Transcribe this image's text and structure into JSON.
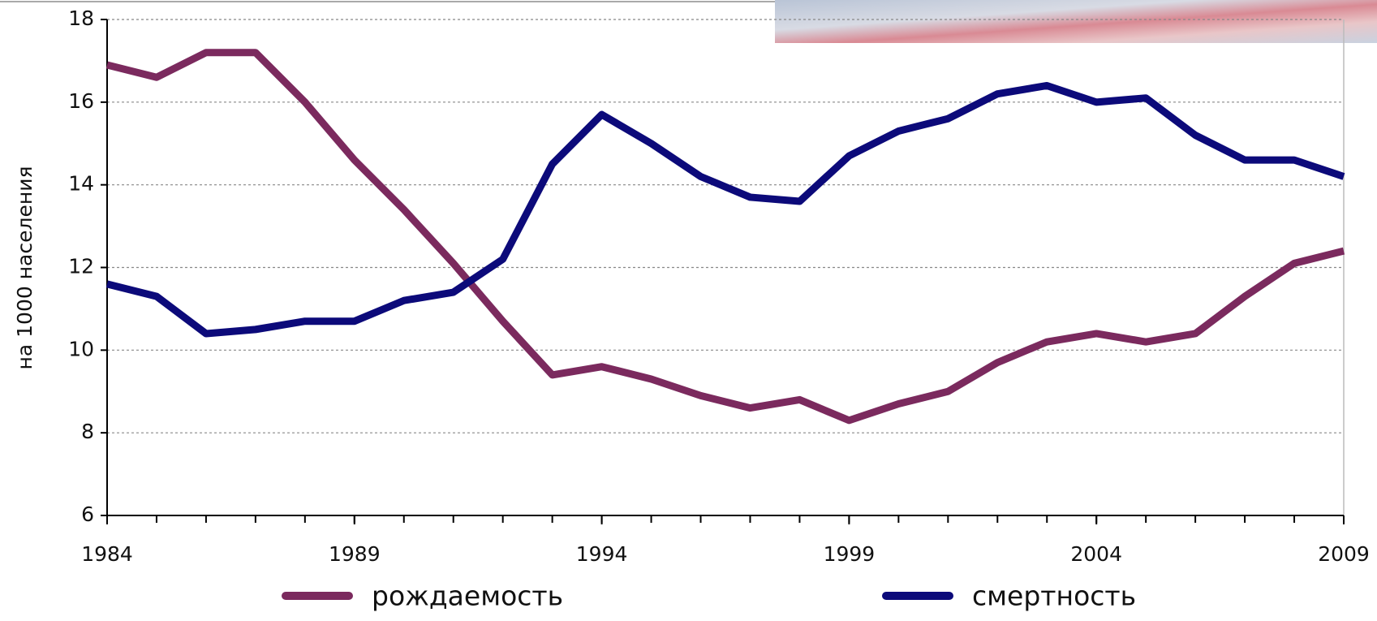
{
  "chart_data": {
    "type": "line",
    "y_label": "на 1000 населения",
    "x": [
      1984,
      1985,
      1986,
      1987,
      1988,
      1989,
      1990,
      1991,
      1992,
      1993,
      1994,
      1995,
      1996,
      1997,
      1998,
      1999,
      2000,
      2001,
      2002,
      2003,
      2004,
      2005,
      2006,
      2007,
      2008,
      2009
    ],
    "series": [
      {
        "name": "рождаемость",
        "color": "#7b2a5e",
        "values": [
          16.9,
          16.6,
          17.2,
          17.2,
          16.0,
          14.6,
          13.4,
          12.1,
          10.7,
          9.4,
          9.6,
          9.3,
          8.9,
          8.6,
          8.8,
          8.3,
          8.7,
          9.0,
          9.7,
          10.2,
          10.4,
          10.2,
          10.4,
          11.3,
          12.1,
          12.4
        ]
      },
      {
        "name": "смертность",
        "color": "#0c0a7a",
        "values": [
          11.6,
          11.3,
          10.4,
          10.5,
          10.7,
          10.7,
          11.2,
          11.4,
          12.2,
          14.5,
          15.7,
          15.0,
          14.2,
          13.7,
          13.6,
          14.7,
          15.3,
          15.6,
          16.2,
          16.4,
          16.0,
          16.1,
          15.2,
          14.6,
          14.6,
          14.2
        ]
      }
    ],
    "xlim": [
      1984,
      2009
    ],
    "xticks": [
      1984,
      1989,
      1994,
      1999,
      2004,
      2009
    ],
    "ylim": [
      6,
      18
    ],
    "yticks": [
      6,
      8,
      10,
      12,
      14,
      16,
      18
    ],
    "grid": true
  }
}
